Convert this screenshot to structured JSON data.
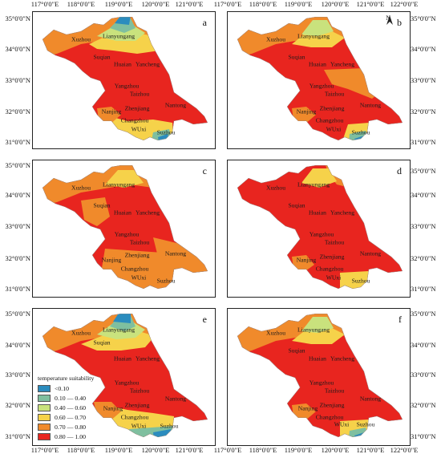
{
  "longitude_ticks": [
    "117°0'0\"E",
    "118°0'0\"E",
    "119°0'0\"E",
    "120°0'0\"E",
    "121°0'0\"E",
    "122°0'0\"E"
  ],
  "latitude_ticks": [
    "35°0'0\"N",
    "34°0'0\"N",
    "33°0'0\"N",
    "32°0'0\"N",
    "31°0'0\"N"
  ],
  "north_arrow": "N",
  "panels": [
    {
      "letter": "a"
    },
    {
      "letter": "b"
    },
    {
      "letter": "c"
    },
    {
      "letter": "d"
    },
    {
      "letter": "e"
    },
    {
      "letter": "f"
    }
  ],
  "cities": {
    "xuzhou": "Xuzhou",
    "lianyungang": "Lianyungang",
    "suqian": "Suqian",
    "huaian": "Huaian",
    "yancheng": "Yancheng",
    "yangzhou": "Yangzhou",
    "taizhou": "Taizhou",
    "zhenjiang": "Zhenjiang",
    "nanjing": "Nanjing",
    "changzhou": "Changzhou",
    "wuxi": "WUxi",
    "suzhou": "Suzhou",
    "nantong": "Nantong"
  },
  "legend": {
    "title": "temperature suitability",
    "items": [
      {
        "label": "<0.10",
        "color": "#2b8cbe"
      },
      {
        "label": "0.10 — 0.40",
        "color": "#7fbf9f"
      },
      {
        "label": "0.40 — 0.60",
        "color": "#c9e27d"
      },
      {
        "label": "0.60 — 0.70",
        "color": "#f6d24a"
      },
      {
        "label": "0.70 — 0.80",
        "color": "#f08a2b"
      },
      {
        "label": "0.80 — 1.00",
        "color": "#e8251f"
      }
    ]
  }
}
